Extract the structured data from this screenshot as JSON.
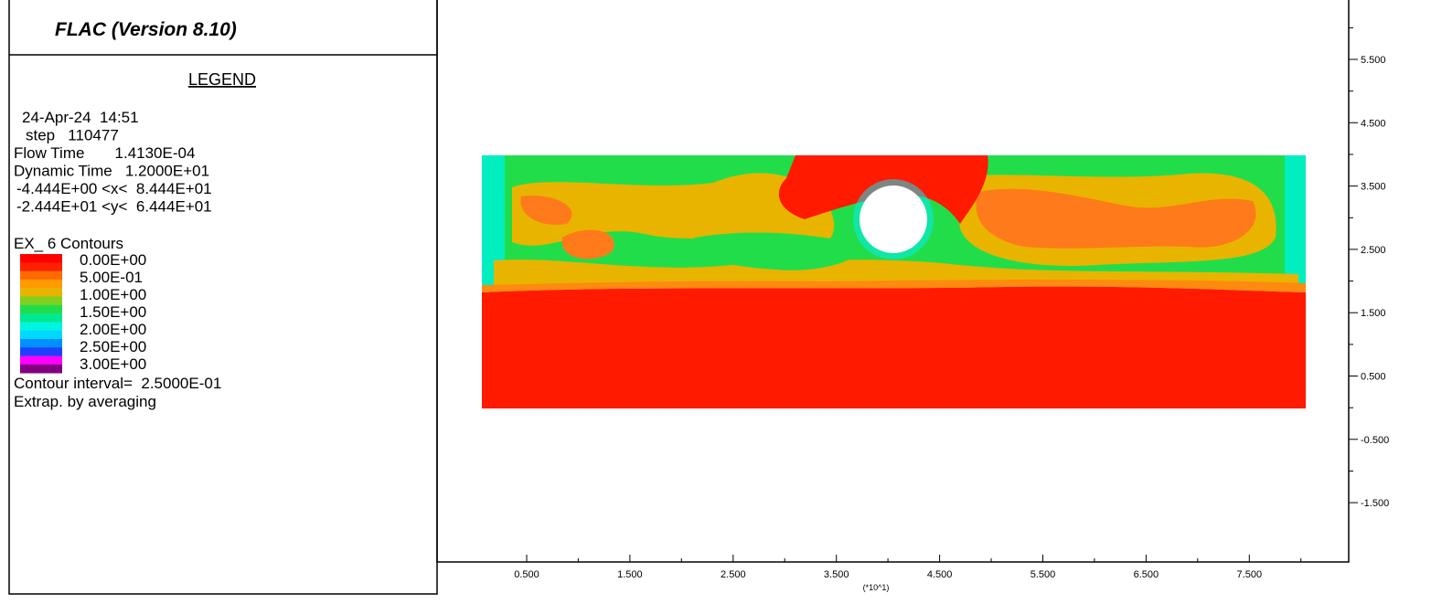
{
  "header": {
    "title": "FLAC (Version 8.10)"
  },
  "legend": {
    "title": "LEGEND",
    "info": [
      "24-Apr-24  14:51",
      "step   110477",
      "Flow Time       1.4130E-04",
      "Dynamic Time   1.2000E+01",
      "-4.444E+00 <x<  8.444E+01",
      "-2.444E+01 <y<  6.444E+01"
    ],
    "contours": {
      "title": "EX_ 6 Contours",
      "levels": [
        "0.00E+00",
        "5.00E-01",
        "1.00E+00",
        "1.50E+00",
        "2.00E+00",
        "2.50E+00",
        "3.00E+00"
      ],
      "interval": "Contour interval=  2.5000E-01",
      "method": "Extrap. by averaging"
    }
  },
  "plot": {
    "y_axis": {
      "ticks": [
        "5.500",
        "4.500",
        "3.500",
        "2.500",
        "1.500",
        "0.500",
        "-0.500",
        "-1.500"
      ]
    },
    "x_axis": {
      "ticks": [
        "0.500",
        "1.500",
        "2.500",
        "3.500",
        "4.500",
        "5.500",
        "6.500",
        "7.500"
      ],
      "multiplier": "(*10^1)"
    }
  }
}
